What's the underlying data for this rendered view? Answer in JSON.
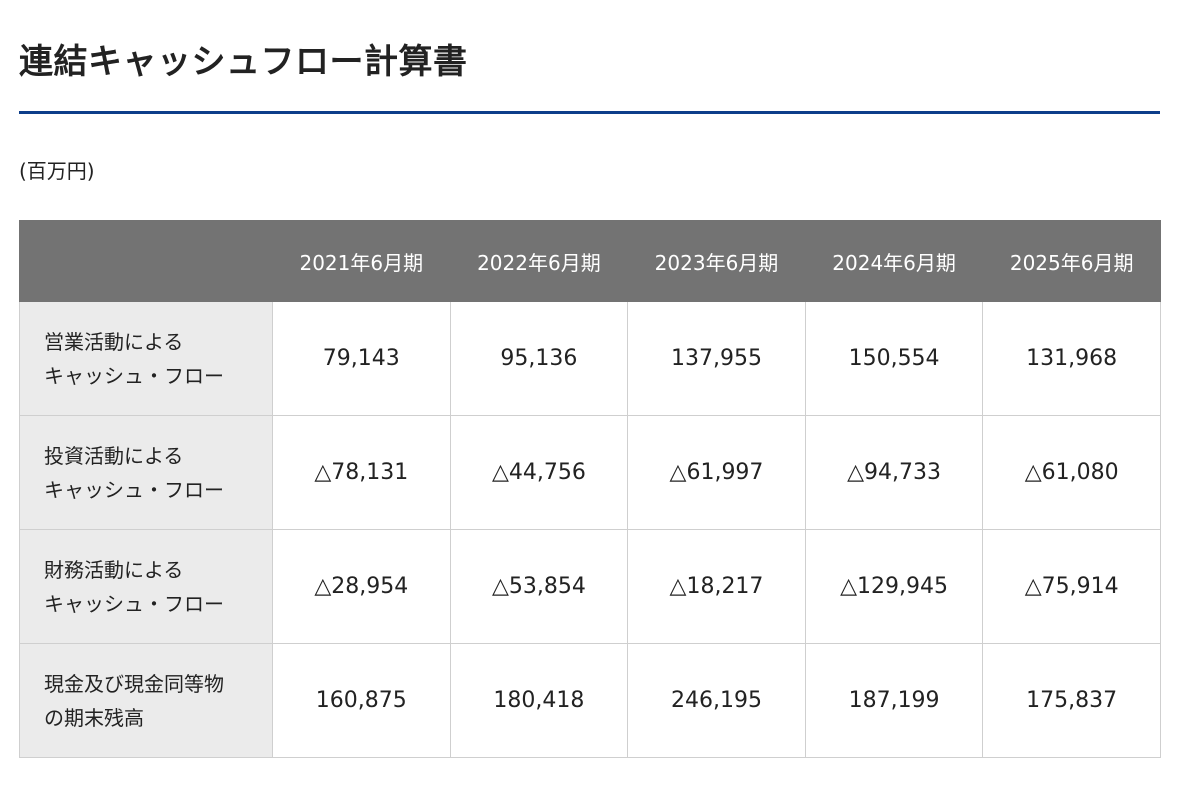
{
  "page": {
    "title": "連結キャッシュフロー計算書",
    "unit": "(百万円)"
  },
  "table": {
    "corner": "",
    "columns": [
      "2021年6月期",
      "2022年6月期",
      "2023年6月期",
      "2024年6月期",
      "2025年6月期"
    ],
    "rows": [
      {
        "label_line1": "営業活動による",
        "label_line2": "キャッシュ・フロー",
        "values": [
          "79,143",
          "95,136",
          "137,955",
          "150,554",
          "131,968"
        ]
      },
      {
        "label_line1": "投資活動による",
        "label_line2": "キャッシュ・フロー",
        "values": [
          "△78,131",
          "△44,756",
          "△61,997",
          "△94,733",
          "△61,080"
        ]
      },
      {
        "label_line1": "財務活動による",
        "label_line2": "キャッシュ・フロー",
        "values": [
          "△28,954",
          "△53,854",
          "△18,217",
          "△129,945",
          "△75,914"
        ]
      },
      {
        "label_line1": "現金及び現金同等物",
        "label_line2": "の期末残高",
        "values": [
          "160,875",
          "180,418",
          "246,195",
          "187,199",
          "175,837"
        ]
      }
    ]
  },
  "colors": {
    "accent_rule": "#0d3e8a",
    "header_bg": "#737373",
    "label_bg": "#ebebeb"
  }
}
